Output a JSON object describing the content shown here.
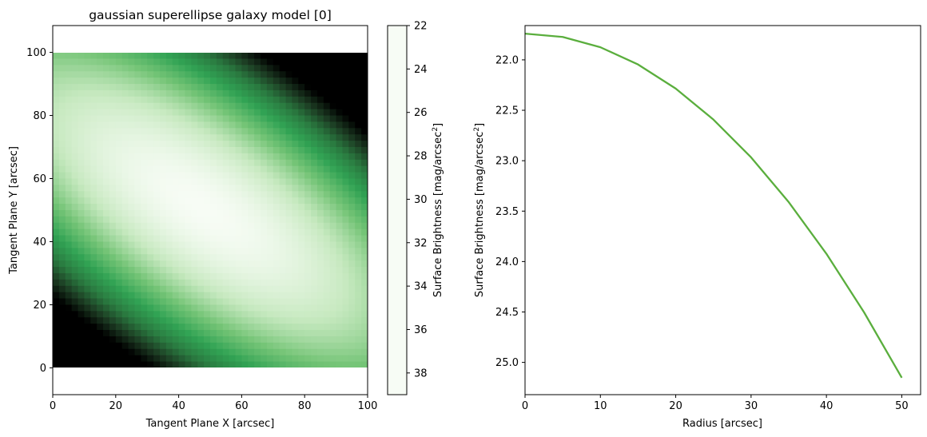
{
  "chart_data": [
    {
      "type": "heatmap",
      "title": "gaussian superellipse galaxy model [0]",
      "xlabel": "Tangent Plane X [arcsec]",
      "ylabel": "Tangent Plane Y [arcsec]",
      "xlim": [
        0,
        100
      ],
      "ylim": [
        -8.5,
        108.5
      ],
      "extent": [
        0,
        100,
        0,
        100
      ],
      "xticks": [
        0,
        20,
        40,
        60,
        80,
        100
      ],
      "yticks": [
        0,
        20,
        40,
        60,
        80,
        100
      ],
      "model": {
        "center": [
          47,
          51
        ],
        "axis_direction_deg": -35,
        "major_scale": 84,
        "minor_scale": 32,
        "peak_mag": 22.0,
        "max_mag": 39
      },
      "colorbar": {
        "label_prefix": "Surface Brightness [mag/arcsec",
        "label_sup": "2",
        "label_suffix": "]",
        "range": [
          22.0,
          39.0
        ],
        "ticks": [
          22,
          24,
          26,
          28,
          30,
          32,
          34,
          36,
          38
        ],
        "cmap": [
          "#f7fcf5",
          "#c7e9c0",
          "#74c476",
          "#31a354",
          "#2a7a40",
          "#1c3a22",
          "#000000"
        ]
      },
      "grid": false
    },
    {
      "type": "line",
      "xlabel": "Radius [arcsec]",
      "ylabel_prefix": "Surface Brightness [mag/arcsec",
      "ylabel_sup": "2",
      "ylabel_suffix": "]",
      "xlim": [
        0,
        52.5
      ],
      "ylim": [
        25.32,
        21.66
      ],
      "y_inverted": true,
      "xticks": [
        0,
        10,
        20,
        30,
        40,
        50
      ],
      "yticks": [
        "22.0",
        "22.5",
        "23.0",
        "23.5",
        "24.0",
        "24.5",
        "25.0"
      ],
      "series": [
        {
          "color": "#5aae3d",
          "x": [
            0,
            5,
            10,
            15,
            20,
            25,
            30,
            35,
            40,
            45,
            50
          ],
          "y": [
            21.74,
            21.773,
            21.875,
            22.046,
            22.285,
            22.592,
            22.967,
            23.411,
            23.923,
            24.504,
            25.152
          ]
        }
      ],
      "grid": false
    }
  ]
}
